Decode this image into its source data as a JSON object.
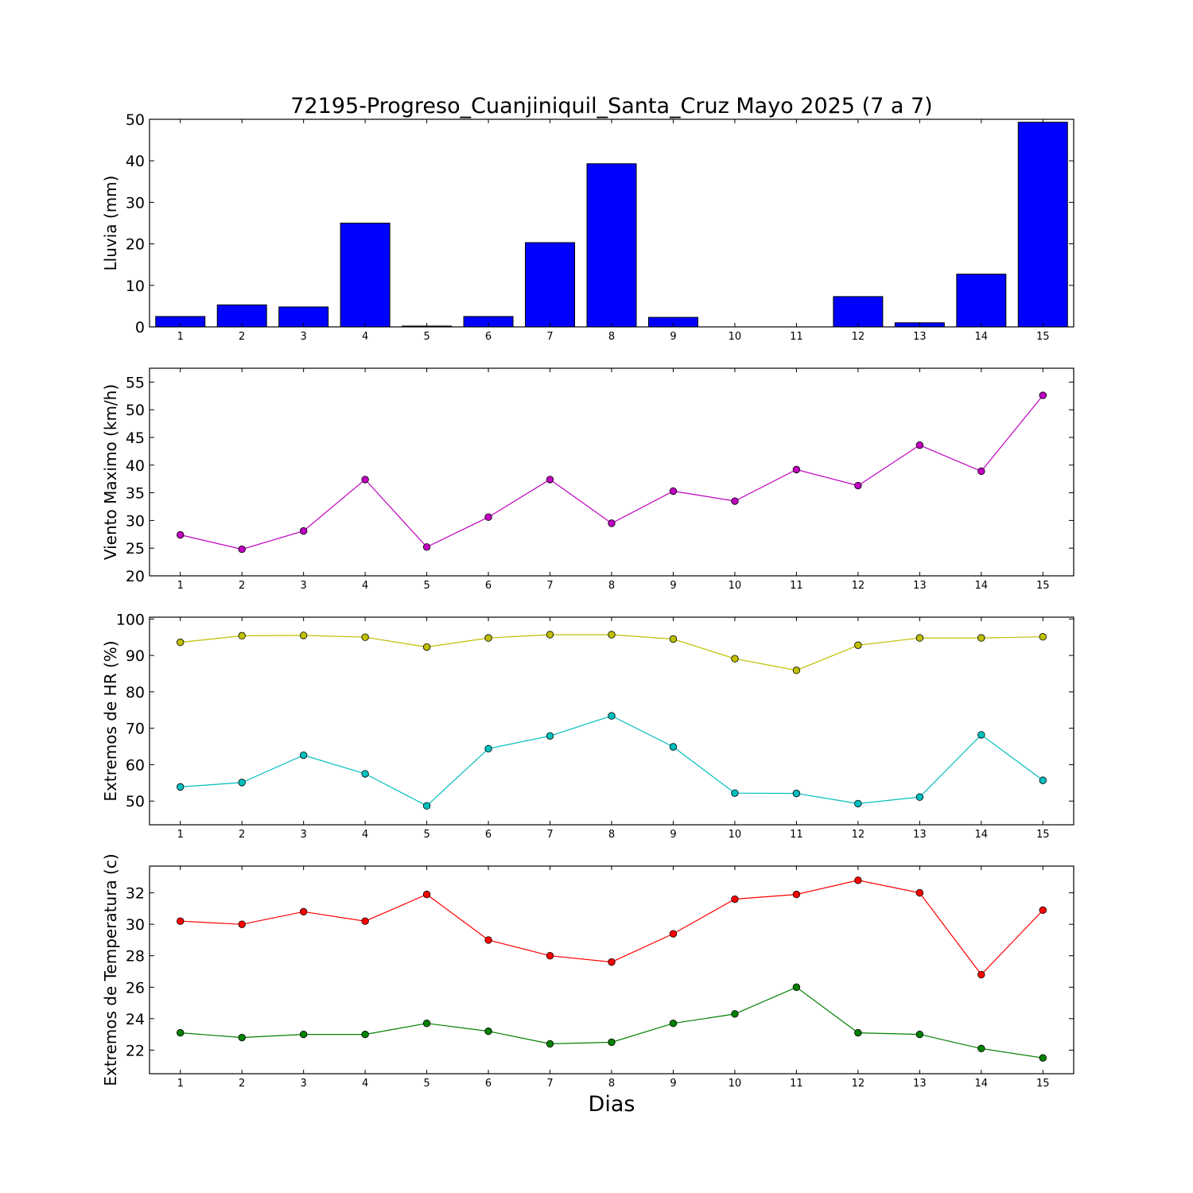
{
  "title": "72195-Progreso_Cuanjiniquil_Santa_Cruz Mayo 2025  (7 a 7)",
  "xlabel": "Dias",
  "chart_data": [
    {
      "type": "bar",
      "ylabel": "Lluvia (mm)",
      "ylim": [
        0,
        50
      ],
      "yticks": [
        0,
        10,
        20,
        30,
        40,
        50
      ],
      "xlim": [
        0.5,
        15.5
      ],
      "categories": [
        1,
        2,
        3,
        4,
        5,
        6,
        7,
        8,
        9,
        10,
        11,
        12,
        13,
        14,
        15
      ],
      "series": [
        {
          "color": "#0000ff",
          "values": [
            2.5,
            5.3,
            4.8,
            25.0,
            0.2,
            2.5,
            20.3,
            39.3,
            2.3,
            0.0,
            0.0,
            7.3,
            1.0,
            12.7,
            49.3
          ]
        }
      ],
      "grid": false
    },
    {
      "type": "line",
      "ylabel": "Viento Maximo (km/h)",
      "ylim": [
        20,
        57.5
      ],
      "yticks": [
        20,
        25,
        30,
        35,
        40,
        45,
        50,
        55
      ],
      "xlim": [
        0.5,
        15.5
      ],
      "x": [
        1,
        2,
        3,
        4,
        5,
        6,
        7,
        8,
        9,
        10,
        11,
        12,
        13,
        14,
        15
      ],
      "series": [
        {
          "color": "#bf00bf",
          "values": [
            27.4,
            24.8,
            28.1,
            37.4,
            25.2,
            30.6,
            37.4,
            29.5,
            35.3,
            33.5,
            39.2,
            36.3,
            43.6,
            38.9,
            52.6
          ]
        }
      ],
      "grid": false
    },
    {
      "type": "line",
      "ylabel": "Extremos de HR (%)",
      "ylim": [
        43.5,
        100.5
      ],
      "yticks": [
        50,
        60,
        70,
        80,
        90,
        100
      ],
      "xlim": [
        0.5,
        15.5
      ],
      "x": [
        1,
        2,
        3,
        4,
        5,
        6,
        7,
        8,
        9,
        10,
        11,
        12,
        13,
        14,
        15
      ],
      "series": [
        {
          "color": "#bfbf00",
          "values": [
            93.6,
            95.4,
            95.5,
            95.0,
            92.3,
            94.8,
            95.7,
            95.7,
            94.5,
            89.1,
            85.9,
            92.8,
            94.8,
            94.8,
            95.1
          ]
        },
        {
          "color": "#00bfbf",
          "values": [
            53.9,
            55.1,
            62.6,
            57.5,
            48.7,
            64.4,
            67.9,
            73.4,
            64.9,
            52.2,
            52.1,
            49.3,
            51.1,
            68.2,
            55.7
          ]
        }
      ],
      "grid": false
    },
    {
      "type": "line",
      "ylabel": "Extremos de Temperatura (c)",
      "ylim": [
        20.5,
        33.7
      ],
      "yticks": [
        22,
        24,
        26,
        28,
        30,
        32
      ],
      "xlim": [
        0.5,
        15.5
      ],
      "x": [
        1,
        2,
        3,
        4,
        5,
        6,
        7,
        8,
        9,
        10,
        11,
        12,
        13,
        14,
        15
      ],
      "series": [
        {
          "color": "#ff0000",
          "values": [
            30.2,
            30.0,
            30.8,
            30.2,
            31.9,
            29.0,
            28.0,
            27.6,
            29.4,
            31.6,
            31.9,
            32.8,
            32.0,
            26.8,
            30.9
          ]
        },
        {
          "color": "#008000",
          "values": [
            23.1,
            22.8,
            23.0,
            23.0,
            23.7,
            23.2,
            22.4,
            22.5,
            23.7,
            24.3,
            26.0,
            23.1,
            23.0,
            22.1,
            21.5
          ]
        }
      ],
      "grid": false
    }
  ]
}
